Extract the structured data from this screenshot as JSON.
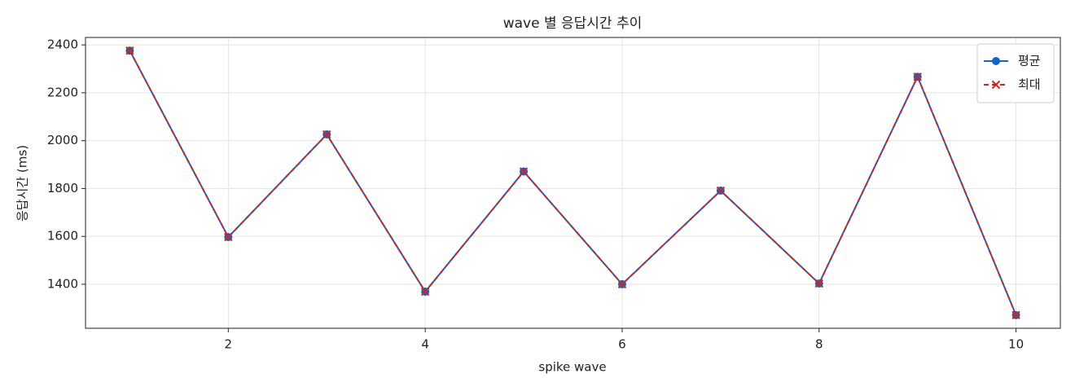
{
  "chart_data": {
    "type": "line",
    "title": "wave 별 응답시간 추이",
    "x_label": "spike wave",
    "y_label": "응답시간 (ms)",
    "x": [
      1,
      2,
      3,
      4,
      5,
      6,
      7,
      8,
      9,
      10
    ],
    "series": [
      {
        "name": "평균",
        "color": "#1565c0",
        "marker": "circle",
        "dash": false,
        "values": [
          2376,
          1597,
          2026,
          1369,
          1871,
          1400,
          1791,
          1403,
          2267,
          1271
        ]
      },
      {
        "name": "최대",
        "color": "#c62828",
        "marker": "x",
        "dash": true,
        "values": [
          2376,
          1597,
          2026,
          1369,
          1871,
          1400,
          1791,
          1403,
          2267,
          1271
        ]
      }
    ],
    "xlim": [
      0.55,
      10.45
    ],
    "xticks": [
      2,
      4,
      6,
      8,
      10
    ],
    "ylim": [
      1216,
      2431
    ],
    "yticks": [
      1400,
      1600,
      1800,
      2000,
      2200,
      2400
    ],
    "grid": true,
    "legend": "upper right"
  }
}
